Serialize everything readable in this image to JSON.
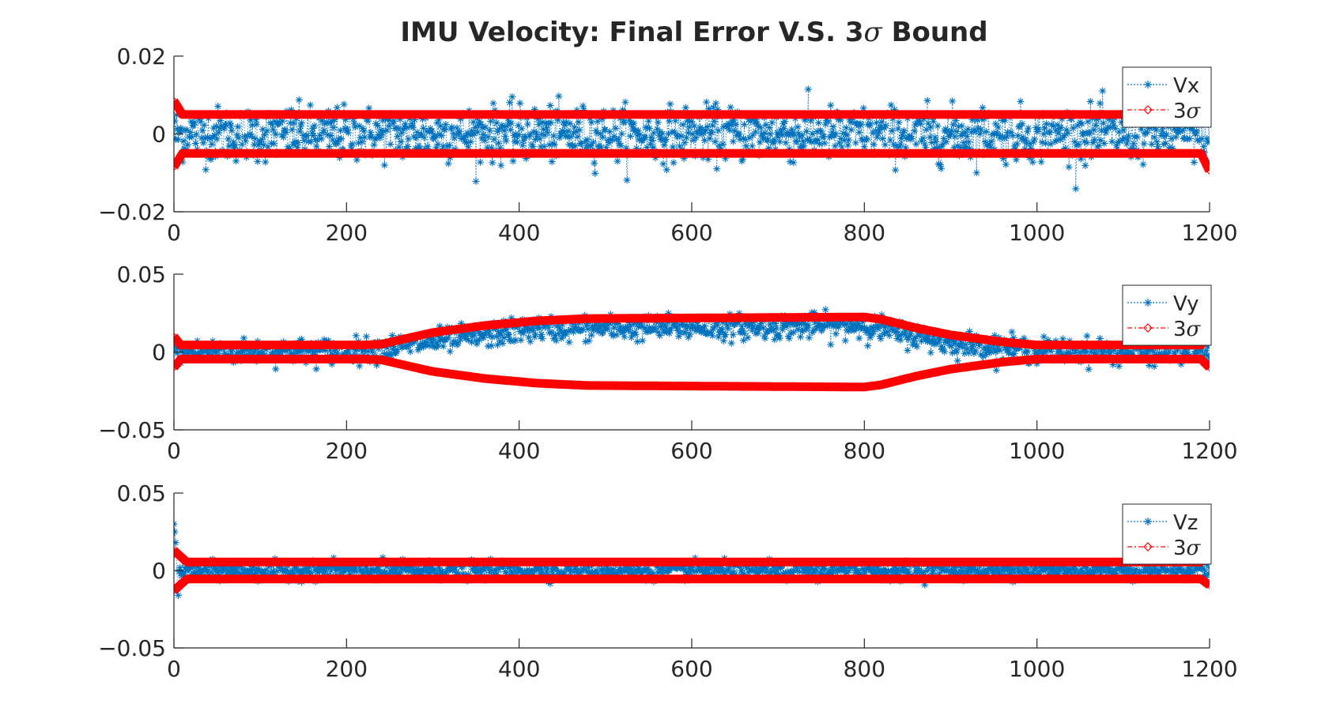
{
  "figure": {
    "title_prefix": "IMU Velocity: Final Error V.S. 3",
    "title_symbol": "σ",
    "title_suffix": " Bound"
  },
  "colors": {
    "error_series": "#0072bd",
    "bound_series": "#ff0000",
    "axes": "#262626",
    "background": "#ffffff"
  },
  "chart_data": [
    {
      "type": "scatter",
      "x_range": [
        0,
        1200
      ],
      "ylim": [
        -0.02,
        0.02
      ],
      "y_ticks": [
        "0.02",
        "0",
        "−0.02"
      ],
      "x_ticks": [
        "0",
        "200",
        "400",
        "600",
        "800",
        "1000",
        "1200"
      ],
      "grid": false,
      "legend_position": "top-right",
      "series": [
        {
          "name": "Vx",
          "style": "dotted line with asterisk markers",
          "noise_std": 0.0035,
          "profile": "flat",
          "mean": 0
        },
        {
          "name": "3σ",
          "style": "dash-dot line with diamond markers",
          "bound_profile": [
            [
              0,
              0.0085
            ],
            [
              10,
              0.005
            ],
            [
              1190,
              0.005
            ],
            [
              1200,
              0.0095
            ]
          ],
          "symmetric": true
        }
      ],
      "legend": [
        "Vx",
        "3σ"
      ]
    },
    {
      "type": "scatter",
      "x_range": [
        0,
        1200
      ],
      "ylim": [
        -0.05,
        0.05
      ],
      "y_ticks": [
        "0.05",
        "0",
        "−0.05"
      ],
      "x_ticks": [
        "0",
        "200",
        "400",
        "600",
        "800",
        "1000",
        "1200"
      ],
      "grid": false,
      "legend_position": "top-right",
      "series": [
        {
          "name": "Vy",
          "style": "dotted line with asterisk markers",
          "noise_std": 0.004,
          "mean_profile": [
            [
              0,
              0
            ],
            [
              220,
              0.001
            ],
            [
              420,
              0.015
            ],
            [
              800,
              0.017
            ],
            [
              900,
              0.006
            ],
            [
              1000,
              0.001
            ],
            [
              1200,
              0
            ]
          ]
        },
        {
          "name": "3σ",
          "style": "dash-dot line with diamond markers",
          "bound_profile": [
            [
              0,
              0.01
            ],
            [
              8,
              0.0045
            ],
            [
              220,
              0.0045
            ],
            [
              240,
              0.005
            ],
            [
              300,
              0.0125
            ],
            [
              360,
              0.017
            ],
            [
              420,
              0.02
            ],
            [
              480,
              0.0215
            ],
            [
              800,
              0.0225
            ],
            [
              820,
              0.021
            ],
            [
              860,
              0.0155
            ],
            [
              900,
              0.011
            ],
            [
              960,
              0.0065
            ],
            [
              1000,
              0.0045
            ],
            [
              1190,
              0.0045
            ],
            [
              1200,
              0.01
            ]
          ],
          "symmetric": true
        }
      ],
      "legend": [
        "Vy",
        "3σ"
      ]
    },
    {
      "type": "scatter",
      "x_range": [
        0,
        1200
      ],
      "ylim": [
        -0.05,
        0.05
      ],
      "y_ticks": [
        "0.05",
        "0",
        "−0.05"
      ],
      "x_ticks": [
        "0",
        "200",
        "400",
        "600",
        "800",
        "1000",
        "1200"
      ],
      "grid": false,
      "legend_position": "top-right",
      "series": [
        {
          "name": "Vz",
          "style": "dotted line with asterisk markers",
          "noise_std": 0.0028,
          "start_values": [
            0.03,
            0.025,
            0.018,
            0.01,
            -0.012,
            -0.016
          ]
        },
        {
          "name": "3σ",
          "style": "dash-dot line with diamond markers",
          "bound_profile": [
            [
              0,
              0.013
            ],
            [
              15,
              0.0055
            ],
            [
              1190,
              0.0055
            ],
            [
              1200,
              0.0095
            ]
          ],
          "symmetric": true
        }
      ],
      "legend": [
        "Vz",
        "3σ"
      ]
    }
  ]
}
